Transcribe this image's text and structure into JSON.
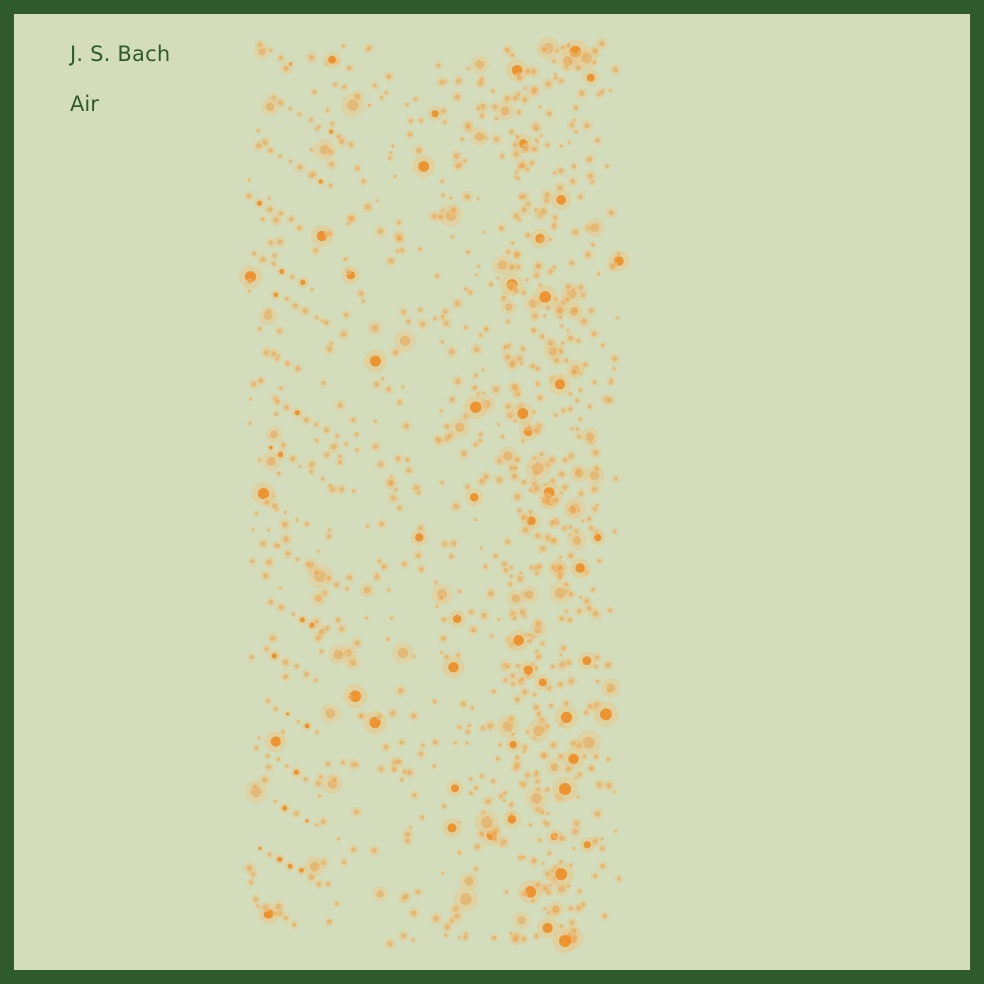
{
  "title": {
    "composer": "J. S. Bach",
    "piece": "Air"
  },
  "colors": {
    "frame": "#2e5a2e",
    "background": "#d3ddbb",
    "text": "#2f5a2f",
    "note": "#f08a1c",
    "halo": "#e8c88c"
  }
}
